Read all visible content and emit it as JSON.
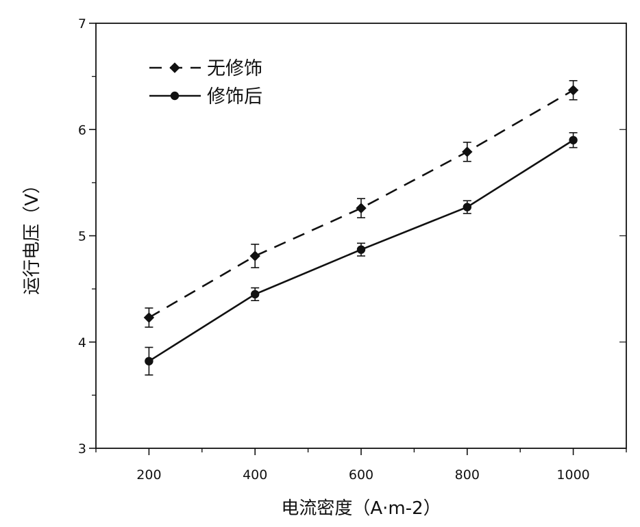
{
  "chart_data": {
    "type": "line",
    "title": "",
    "xlabel": "电流密度（A·m-2）",
    "ylabel": "运行电压（V）",
    "x": [
      200,
      400,
      600,
      800,
      1000
    ],
    "xlim": [
      100,
      1100
    ],
    "ylim": [
      3,
      7
    ],
    "xticks": [
      "200",
      "400",
      "600",
      "800",
      "1000"
    ],
    "yticks": [
      "3",
      "4",
      "5",
      "6",
      "7"
    ],
    "grid": false,
    "legend_position": "top-left",
    "series": [
      {
        "name": "无修饰",
        "marker": "diamond",
        "line_style": "dashed",
        "color": "#111111",
        "values": [
          4.23,
          4.81,
          5.26,
          5.79,
          6.37
        ],
        "errors": [
          0.09,
          0.11,
          0.09,
          0.09,
          0.09
        ]
      },
      {
        "name": "修饰后",
        "marker": "circle",
        "line_style": "solid",
        "color": "#111111",
        "values": [
          3.82,
          4.45,
          4.87,
          5.27,
          5.9
        ],
        "errors": [
          0.13,
          0.06,
          0.06,
          0.06,
          0.07
        ]
      }
    ]
  }
}
